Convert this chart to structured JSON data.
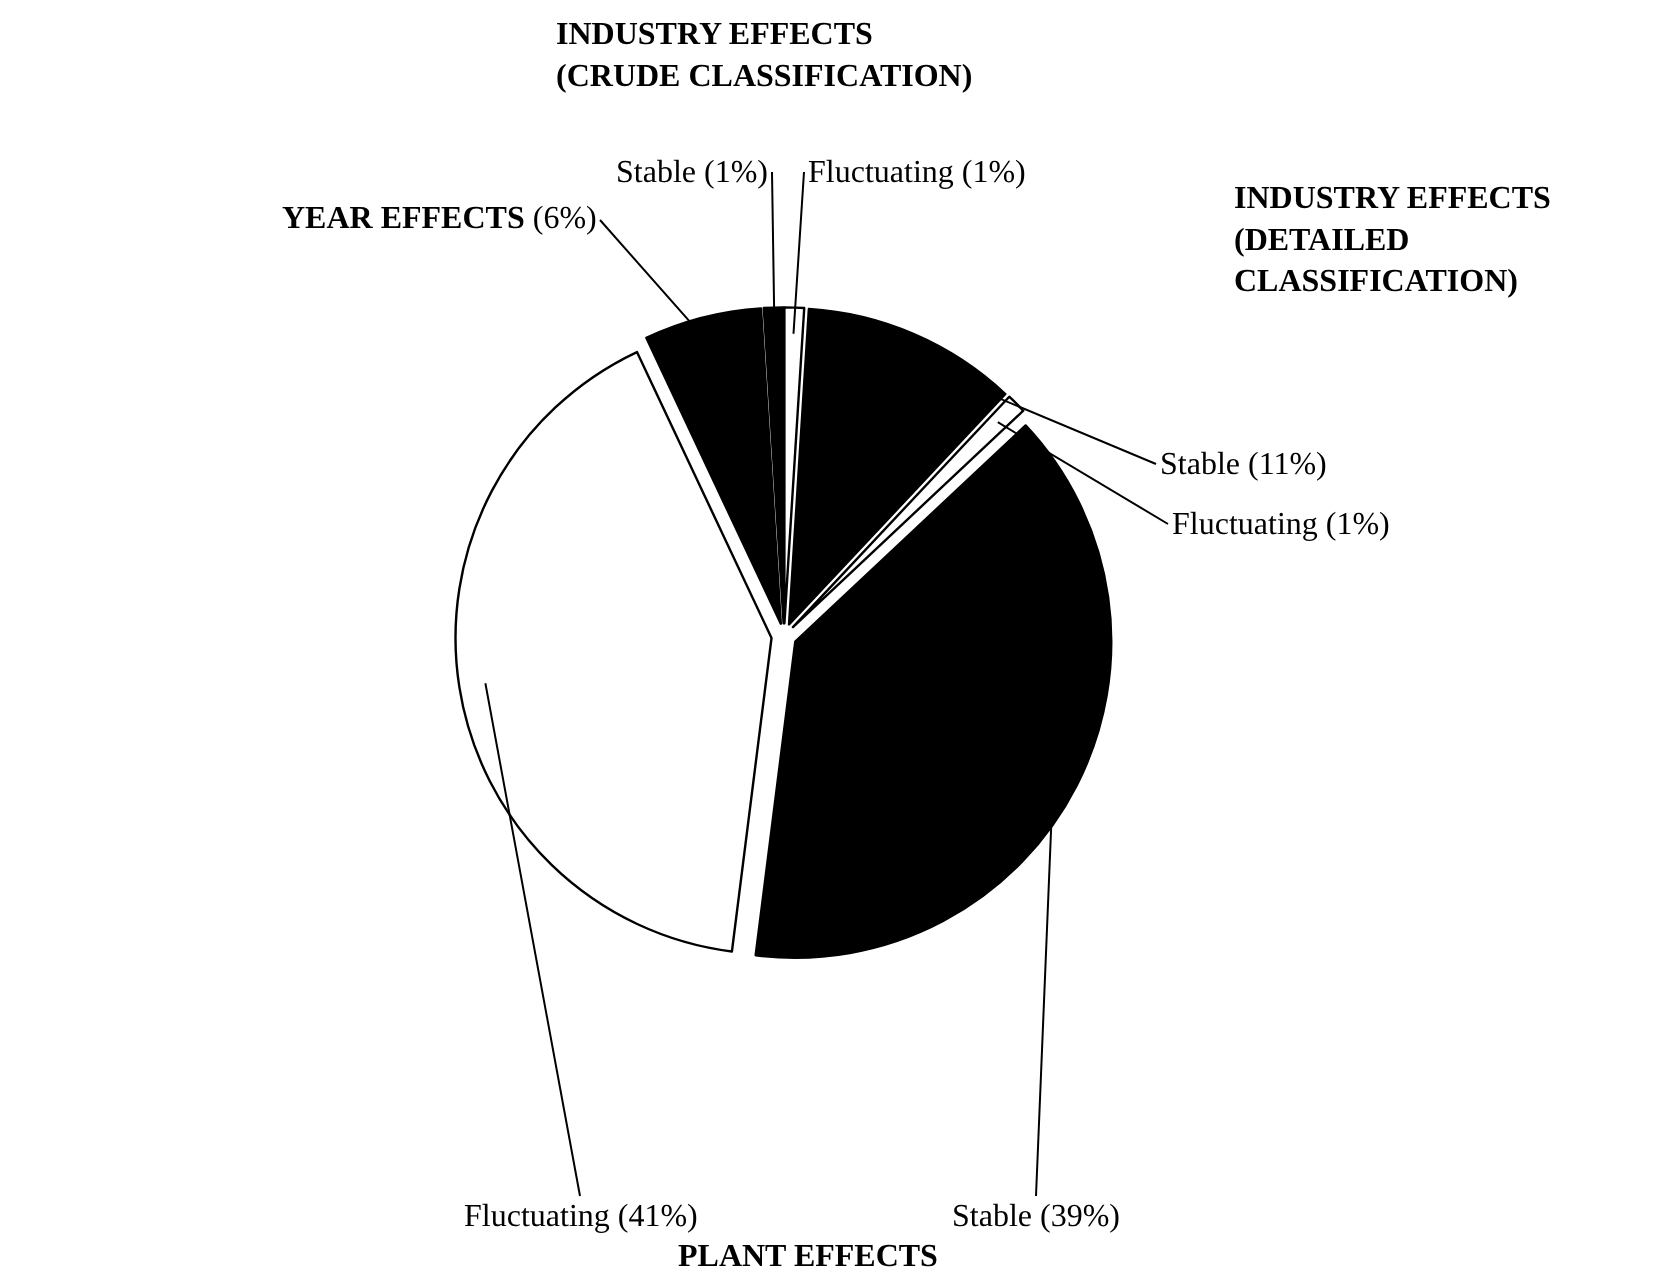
{
  "chart_data": {
    "type": "pie",
    "categories": [
      "Fluctuating",
      "Stable",
      "Fluctuating",
      "Stable",
      "Fluctuating",
      "YEAR EFFECTS",
      "Stable"
    ],
    "values": [
      1,
      11,
      1,
      39,
      41,
      6,
      1
    ],
    "value_labels": [
      "(1%)",
      "(11%)",
      "(1%)",
      "(39%)",
      "(41%)",
      "(6%)",
      "(1%)"
    ],
    "colors": [
      "#ffffff",
      "#000000",
      "#ffffff",
      "#000000",
      "#ffffff",
      "#000000",
      "#000000"
    ],
    "annotations": [
      "INDUSTRY EFFECTS\n(CRUDE CLASSIFICATION)",
      "INDUSTRY EFFECTS\n(DETAILED\nCLASSIFICATION)",
      "PLANT EFFECTS"
    ],
    "legend": false
  }
}
